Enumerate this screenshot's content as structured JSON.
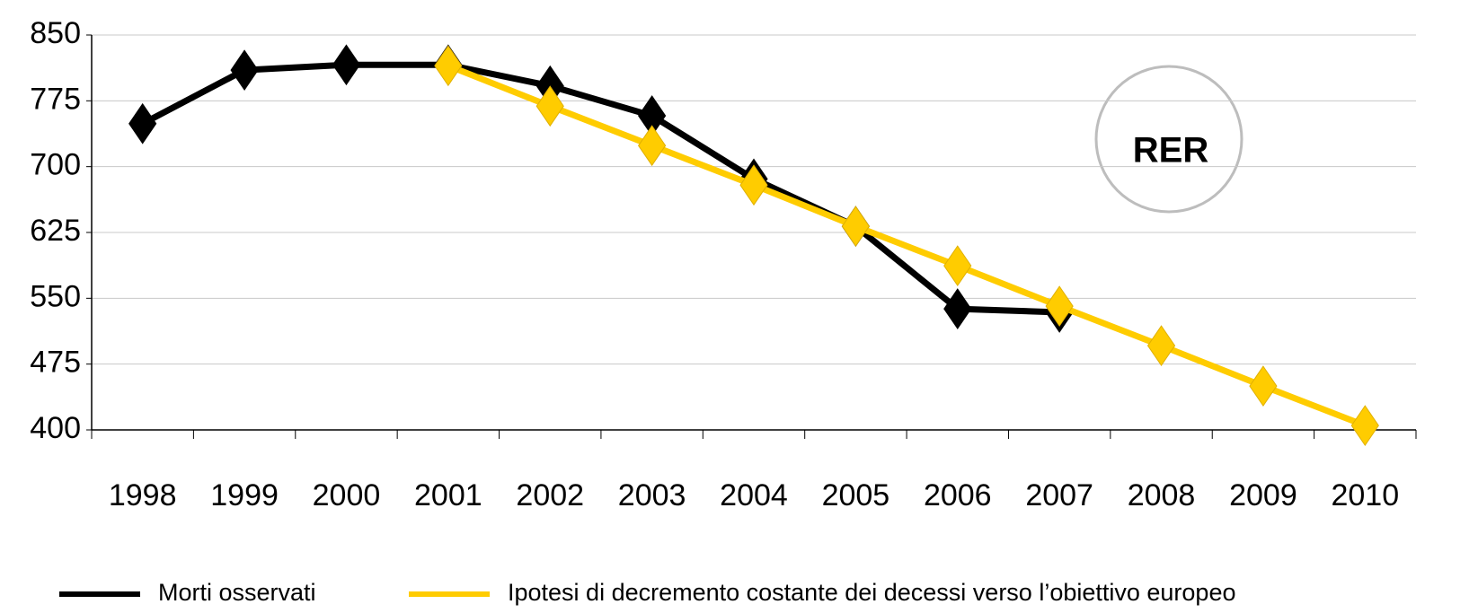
{
  "chart_data": {
    "type": "line",
    "categories": [
      "1998",
      "1999",
      "2000",
      "2001",
      "2002",
      "2003",
      "2004",
      "2005",
      "2006",
      "2007",
      "2008",
      "2009",
      "2010"
    ],
    "series": [
      {
        "name": "Morti osservati",
        "color": "#000000",
        "values": [
          749,
          810,
          816,
          816,
          792,
          758,
          686,
          632,
          538,
          534,
          null,
          null,
          null
        ]
      },
      {
        "name": "Ipotesi di decremento costante dei decessi verso l’obiettivo europeo",
        "color": "#ffcc00",
        "values": [
          null,
          null,
          null,
          815,
          769,
          724,
          679,
          632,
          587,
          541,
          496,
          450,
          405
        ]
      }
    ],
    "ylim": [
      400,
      850
    ],
    "yticks": [
      400,
      475,
      550,
      625,
      700,
      775,
      850
    ],
    "grid": true,
    "annotations": [
      "RER"
    ],
    "legend": "bottom"
  }
}
